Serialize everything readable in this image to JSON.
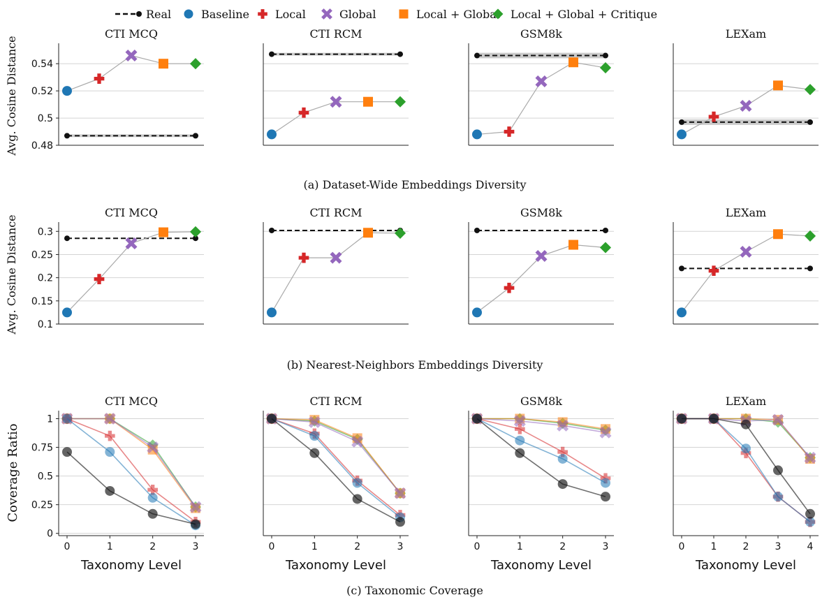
{
  "legend": {
    "entries": [
      {
        "label": "Real",
        "color": "#111111",
        "marker": "line-dot"
      },
      {
        "label": "Baseline",
        "color": "#1f77b4",
        "marker": "circle"
      },
      {
        "label": "Local",
        "color": "#d62728",
        "marker": "plus"
      },
      {
        "label": "Global",
        "color": "#9467bd",
        "marker": "x"
      },
      {
        "label": "Local + Global",
        "color": "#ff7f0e",
        "marker": "square"
      },
      {
        "label": "Local + Global + Critique",
        "color": "#2ca02c",
        "marker": "diamond"
      }
    ]
  },
  "rows": [
    {
      "ylabel": "Avg. Cosine Distance",
      "caption": "(a) Dataset-Wide Embeddings Diversity"
    },
    {
      "ylabel": "Avg. Cosine Distance",
      "caption": "(b) Nearest-Neighbors Embeddings Diversity"
    },
    {
      "ylabel": "Coverage Ratio",
      "caption": "(c) Taxonomic Coverage"
    }
  ],
  "chart_data": [
    {
      "type": "line",
      "row": 0,
      "col": 0,
      "title": "CTI MCQ",
      "ylim": [
        0.48,
        0.555
      ],
      "yticks": [
        0.48,
        0.5,
        0.52,
        0.54
      ],
      "ytick_labels": [
        "0.48",
        "0.5",
        "0.52",
        "0.54"
      ],
      "real": 0.487,
      "real_band": [
        0.486,
        0.488
      ],
      "values": [
        0.52,
        0.529,
        0.546,
        0.54,
        0.54
      ]
    },
    {
      "type": "line",
      "row": 0,
      "col": 1,
      "title": "CTI RCM",
      "ylim": [
        0.48,
        0.555
      ],
      "yticks": [
        0.5,
        0.52,
        0.54
      ],
      "ytick_labels": [],
      "real": 0.547,
      "real_band": [
        0.546,
        0.548
      ],
      "values": [
        0.488,
        0.504,
        0.512,
        0.512,
        0.512
      ]
    },
    {
      "type": "line",
      "row": 0,
      "col": 2,
      "title": "GSM8k",
      "ylim": [
        0.48,
        0.555
      ],
      "yticks": [
        0.5,
        0.52,
        0.54
      ],
      "ytick_labels": [],
      "real": 0.546,
      "real_band": [
        0.544,
        0.548
      ],
      "values": [
        0.488,
        0.49,
        0.527,
        0.541,
        0.537
      ]
    },
    {
      "type": "line",
      "row": 0,
      "col": 3,
      "title": "LEXam",
      "ylim": [
        0.48,
        0.555
      ],
      "yticks": [
        0.5,
        0.52,
        0.54
      ],
      "ytick_labels": [],
      "real": 0.497,
      "real_band": [
        0.495,
        0.499
      ],
      "values": [
        0.488,
        0.501,
        0.509,
        0.524,
        0.521
      ]
    },
    {
      "type": "line",
      "row": 1,
      "col": 0,
      "title": "CTI MCQ",
      "ylim": [
        0.1,
        0.32
      ],
      "yticks": [
        0.1,
        0.15,
        0.2,
        0.25,
        0.3
      ],
      "ytick_labels": [
        "0.1",
        "0.15",
        "0.2",
        "0.25",
        "0.3"
      ],
      "real": 0.285,
      "values": [
        0.125,
        0.197,
        0.274,
        0.298,
        0.299
      ]
    },
    {
      "type": "line",
      "row": 1,
      "col": 1,
      "title": "CTI RCM",
      "ylim": [
        0.1,
        0.32
      ],
      "yticks": [
        0.1,
        0.2,
        0.3
      ],
      "ytick_labels": [],
      "real": 0.302,
      "values": [
        0.125,
        0.243,
        0.243,
        0.297,
        0.296
      ]
    },
    {
      "type": "line",
      "row": 1,
      "col": 2,
      "title": "GSM8k",
      "ylim": [
        0.1,
        0.32
      ],
      "yticks": [
        0.15,
        0.2,
        0.25,
        0.3
      ],
      "ytick_labels": [],
      "real": 0.302,
      "values": [
        0.125,
        0.178,
        0.247,
        0.271,
        0.265
      ]
    },
    {
      "type": "line",
      "row": 1,
      "col": 3,
      "title": "LEXam",
      "ylim": [
        0.1,
        0.32
      ],
      "yticks": [
        0.15,
        0.2,
        0.25,
        0.3
      ],
      "ytick_labels": [],
      "real": 0.22,
      "values": [
        0.125,
        0.215,
        0.256,
        0.294,
        0.29
      ]
    },
    {
      "type": "line",
      "row": 2,
      "col": 0,
      "title": "CTI MCQ",
      "xlabel": "Taxonomy Level",
      "x": [
        0,
        1,
        2,
        3
      ],
      "ylim": [
        -0.02,
        1.07
      ],
      "yticks": [
        0,
        0.25,
        0.5,
        0.75,
        1
      ],
      "ytick_labels": [
        "0",
        "0.25",
        "0.5",
        "0.75",
        "1"
      ],
      "series": [
        {
          "name": "Real",
          "values": [
            0.71,
            0.37,
            0.17,
            0.08
          ]
        },
        {
          "name": "Baseline",
          "values": [
            1,
            0.71,
            0.31,
            0.07
          ]
        },
        {
          "name": "Local",
          "values": [
            1,
            0.85,
            0.38,
            0.1
          ]
        },
        {
          "name": "Global",
          "values": [
            1,
            1,
            0.75,
            0.23
          ]
        },
        {
          "name": "Local + Global",
          "values": [
            1,
            1,
            0.73,
            0.22
          ]
        },
        {
          "name": "Local + Global + Critique",
          "values": [
            1,
            1,
            0.77,
            0.23
          ]
        }
      ]
    },
    {
      "type": "line",
      "row": 2,
      "col": 1,
      "title": "CTI RCM",
      "xlabel": "Taxonomy Level",
      "x": [
        0,
        1,
        2,
        3
      ],
      "ylim": [
        -0.02,
        1.07
      ],
      "yticks": [
        0.25,
        0.5,
        0.75,
        1
      ],
      "ytick_labels": [],
      "series": [
        {
          "name": "Real",
          "values": [
            1,
            0.7,
            0.3,
            0.1
          ]
        },
        {
          "name": "Baseline",
          "values": [
            1,
            0.85,
            0.44,
            0.14
          ]
        },
        {
          "name": "Local",
          "values": [
            1,
            0.87,
            0.46,
            0.16
          ]
        },
        {
          "name": "Global",
          "values": [
            1,
            0.97,
            0.8,
            0.35
          ]
        },
        {
          "name": "Local + Global",
          "values": [
            1,
            0.99,
            0.83,
            0.35
          ]
        },
        {
          "name": "Local + Global + Critique",
          "values": [
            1,
            0.98,
            0.82,
            0.35
          ]
        }
      ]
    },
    {
      "type": "line",
      "row": 2,
      "col": 2,
      "title": "GSM8k",
      "xlabel": "Taxonomy Level",
      "x": [
        0,
        1,
        2,
        3
      ],
      "ylim": [
        -0.02,
        1.07
      ],
      "yticks": [
        0.25,
        0.5,
        0.75,
        1
      ],
      "ytick_labels": [],
      "series": [
        {
          "name": "Real",
          "values": [
            1,
            0.7,
            0.43,
            0.32
          ]
        },
        {
          "name": "Baseline",
          "values": [
            1,
            0.81,
            0.65,
            0.44
          ]
        },
        {
          "name": "Local",
          "values": [
            1,
            0.91,
            0.71,
            0.48
          ]
        },
        {
          "name": "Global",
          "values": [
            1,
            0.98,
            0.94,
            0.88
          ]
        },
        {
          "name": "Local + Global",
          "values": [
            1,
            1,
            0.97,
            0.91
          ]
        },
        {
          "name": "Local + Global + Critique",
          "values": [
            1,
            1,
            0.96,
            0.9
          ]
        }
      ]
    },
    {
      "type": "line",
      "row": 2,
      "col": 3,
      "title": "LEXam",
      "xlabel": "Taxonomy Level",
      "x": [
        0,
        1,
        2,
        3,
        4
      ],
      "ylim": [
        -0.02,
        1.07
      ],
      "yticks": [
        0.25,
        0.5,
        0.75,
        1
      ],
      "ytick_labels": [],
      "series": [
        {
          "name": "Real",
          "values": [
            1,
            1,
            0.95,
            0.55,
            0.17
          ]
        },
        {
          "name": "Baseline",
          "values": [
            1,
            1,
            0.74,
            0.32,
            0.1
          ]
        },
        {
          "name": "Local",
          "values": [
            1,
            1,
            0.7,
            0.32,
            0.1
          ]
        },
        {
          "name": "Global",
          "values": [
            1,
            1,
            0.98,
            0.99,
            0.66
          ]
        },
        {
          "name": "Local + Global",
          "values": [
            1,
            1,
            1,
            0.99,
            0.65
          ]
        },
        {
          "name": "Local + Global + Critique",
          "values": [
            1,
            1,
            1,
            0.97,
            0.66
          ]
        }
      ]
    }
  ]
}
